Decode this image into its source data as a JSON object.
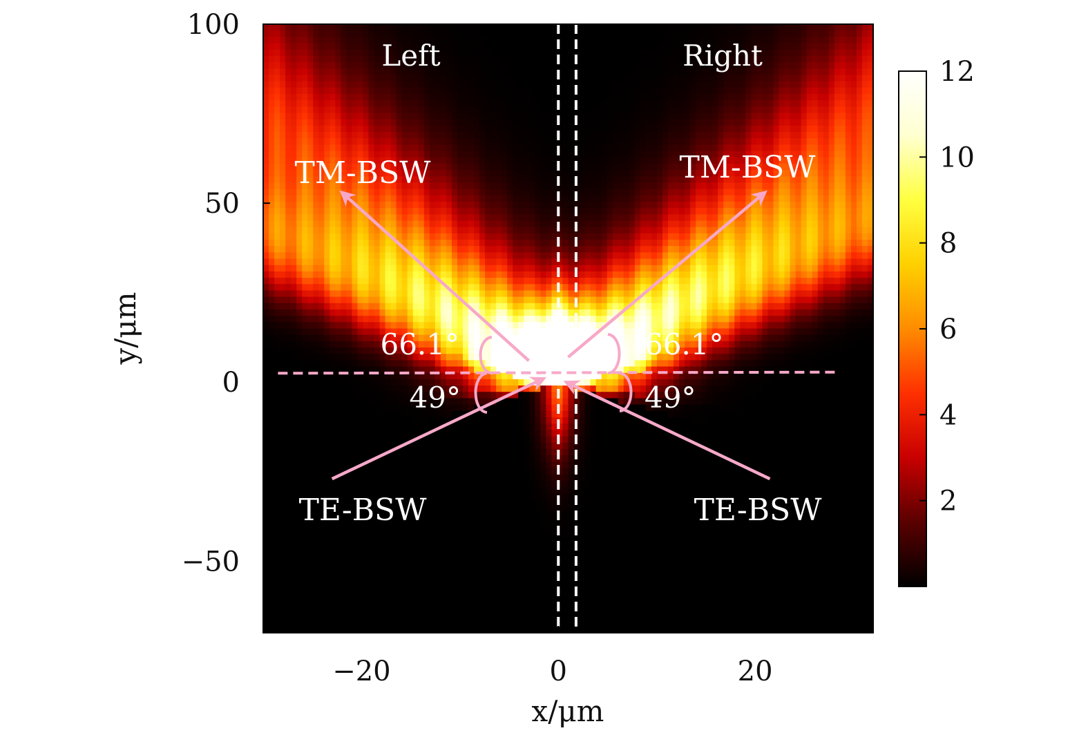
{
  "chart_data": {
    "type": "heatmap",
    "title": "",
    "xlabel": "x/μm",
    "ylabel": "y/μm",
    "xlim": [
      -30,
      32
    ],
    "ylim": [
      -70,
      100
    ],
    "xticks": [
      -20,
      0,
      20
    ],
    "yticks": [
      100,
      50,
      0,
      -50
    ],
    "xtick_labels": [
      "−20",
      "0",
      "20"
    ],
    "ytick_labels": [
      "100",
      "50",
      "0",
      "−50"
    ],
    "colorbar": {
      "min": 0,
      "max": 12,
      "ticks": [
        2,
        4,
        6,
        8,
        10,
        12
      ],
      "tick_labels": [
        "2",
        "4",
        "6",
        "8",
        "10",
        "12"
      ],
      "colormap": "hot",
      "colors": [
        "#000000",
        "#5a0000",
        "#c80000",
        "#ff3000",
        "#ff8c00",
        "#ffd000",
        "#ffff40",
        "#ffffd0",
        "#ffffff"
      ]
    },
    "regions": [
      "Left",
      "Right"
    ],
    "beams": [
      {
        "label": "TM-BSW",
        "side": "left",
        "angle_deg": 66.1,
        "direction": "outgoing",
        "tip": [
          -22,
          53
        ],
        "tail": [
          -3,
          6
        ]
      },
      {
        "label": "TM-BSW",
        "side": "right",
        "angle_deg": 66.1,
        "direction": "outgoing",
        "tip": [
          21,
          53
        ],
        "tail": [
          1,
          7
        ]
      },
      {
        "label": "TE-BSW",
        "side": "left",
        "angle_deg": 49,
        "direction": "incoming",
        "tip": [
          -1.5,
          1
        ],
        "tail": [
          -23,
          -27
        ]
      },
      {
        "label": "TE-BSW",
        "side": "right",
        "angle_deg": 49,
        "direction": "incoming",
        "tip": [
          0.8,
          0
        ],
        "tail": [
          21.5,
          -27
        ]
      }
    ],
    "angle_labels": [
      "66.1°",
      "66.1°",
      "49°",
      "49°"
    ],
    "reference_lines": [
      {
        "orientation": "vertical",
        "x": 0,
        "style": "dashed",
        "color": "#ffffff"
      },
      {
        "orientation": "vertical",
        "x": 1.8,
        "style": "dashed",
        "color": "#ffffff"
      },
      {
        "orientation": "horizontal",
        "y": 2.5,
        "style": "dashed",
        "color": "#f7a8c8"
      }
    ],
    "annotation_color": "#f7a8c8"
  }
}
